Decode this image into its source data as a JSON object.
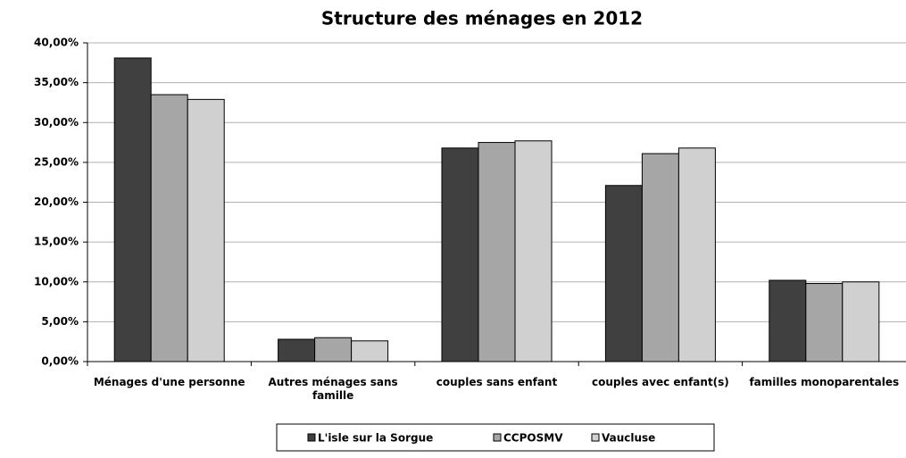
{
  "chart_data": {
    "type": "bar",
    "title": "Structure des ménages en 2012",
    "categories": [
      "Ménages d'une personne",
      "Autres ménages sans famille",
      "couples sans enfant",
      "couples avec enfant(s)",
      "familles monoparentales"
    ],
    "series": [
      {
        "name": "L'isle sur la Sorgue",
        "color": "#404040",
        "values": [
          38.1,
          2.8,
          26.8,
          22.1,
          10.2
        ]
      },
      {
        "name": "CCPOSMV",
        "color": "#a6a6a6",
        "values": [
          33.5,
          3.0,
          27.5,
          26.1,
          9.8
        ]
      },
      {
        "name": "Vaucluse",
        "color": "#d0d0d0",
        "values": [
          32.9,
          2.6,
          27.7,
          26.8,
          10.0
        ]
      }
    ],
    "ylim": [
      0,
      40
    ],
    "yticks": [
      {
        "value": 0,
        "label": "0,00%"
      },
      {
        "value": 5,
        "label": "5,00%"
      },
      {
        "value": 10,
        "label": "10,00%"
      },
      {
        "value": 15,
        "label": "15,00%"
      },
      {
        "value": 20,
        "label": "20,00%"
      },
      {
        "value": 25,
        "label": "25,00%"
      },
      {
        "value": 30,
        "label": "30,00%"
      },
      {
        "value": 35,
        "label": "35,00%"
      },
      {
        "value": 40,
        "label": "40,00%"
      }
    ],
    "grid": true,
    "legend": "bottom"
  }
}
